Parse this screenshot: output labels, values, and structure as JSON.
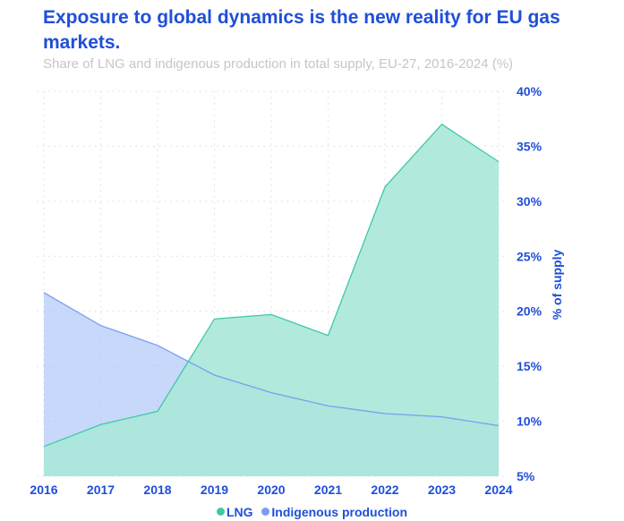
{
  "chart_data": {
    "type": "area",
    "title": "Exposure to global dynamics is the new reality for EU gas markets.",
    "subtitle": "Share of LNG and indigenous production in total supply, EU-27, 2016-2024 (%)",
    "xlabel": "",
    "ylabel": "% of supply",
    "x": [
      "2016",
      "2017",
      "2018",
      "2019",
      "2020",
      "2021",
      "2022",
      "2023",
      "2024"
    ],
    "ylim": [
      5,
      40
    ],
    "yticks": [
      5,
      10,
      15,
      20,
      25,
      30,
      35,
      40
    ],
    "ytick_labels": [
      "5%",
      "10%",
      "15%",
      "20%",
      "25%",
      "30%",
      "35%",
      "40%"
    ],
    "grid": true,
    "legend_position": "bottom",
    "y_axis_side": "right",
    "series": [
      {
        "name": "LNG",
        "color": "#3ec9a7",
        "fill": "#a8e8d8",
        "values": [
          7.7,
          9.7,
          10.9,
          19.3,
          19.7,
          17.8,
          31.3,
          37.0,
          33.6
        ]
      },
      {
        "name": "Indigenous production",
        "color": "#7b9df0",
        "fill": "#aac3f7",
        "values": [
          21.7,
          18.7,
          16.9,
          14.2,
          12.6,
          11.4,
          10.7,
          10.4,
          9.6
        ]
      }
    ]
  }
}
